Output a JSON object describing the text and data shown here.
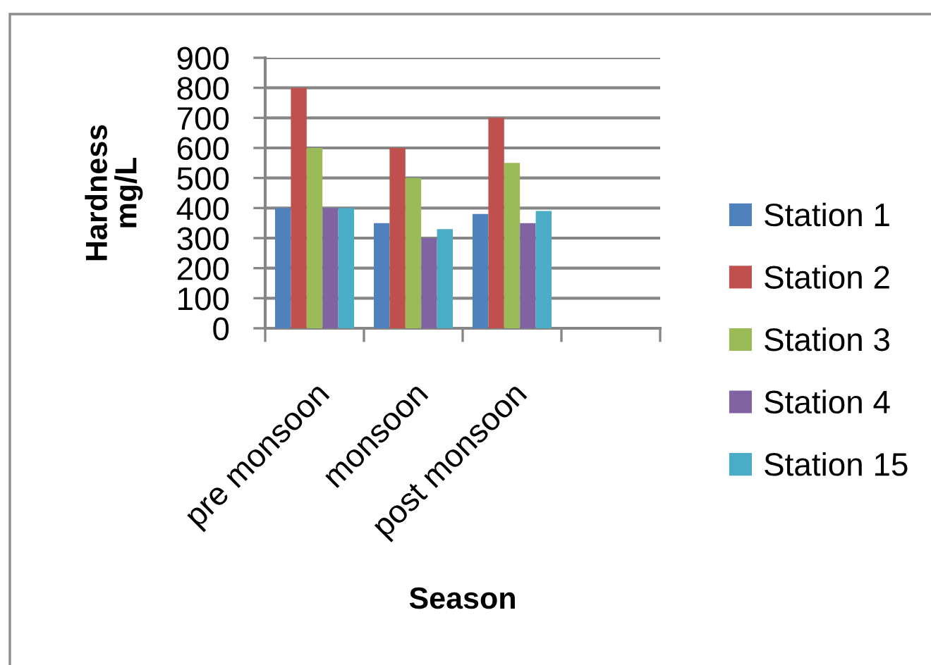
{
  "chart_data": {
    "type": "bar",
    "xlabel": "Season",
    "ylabel": "Hardness\nmg/L",
    "categories": [
      "pre monsoon",
      "monsoon",
      "post monsoon",
      null
    ],
    "series": [
      {
        "name": "Station 1",
        "color": "#4f81bd",
        "values": [
          400,
          350,
          380,
          null
        ]
      },
      {
        "name": "Station 2",
        "color": "#c0504d",
        "values": [
          800,
          600,
          700,
          null
        ]
      },
      {
        "name": "Station 3",
        "color": "#9bbb59",
        "values": [
          600,
          500,
          550,
          null
        ]
      },
      {
        "name": "Station 4",
        "color": "#8064a2",
        "values": [
          400,
          300,
          350,
          null
        ]
      },
      {
        "name": "Station 15",
        "color": "#4bacc6",
        "values": [
          400,
          330,
          390,
          null
        ]
      }
    ],
    "ylim": [
      0,
      900
    ],
    "yticks": [
      0,
      100,
      200,
      300,
      400,
      500,
      600,
      700,
      800,
      900
    ],
    "grid": "y",
    "legend": "right"
  }
}
